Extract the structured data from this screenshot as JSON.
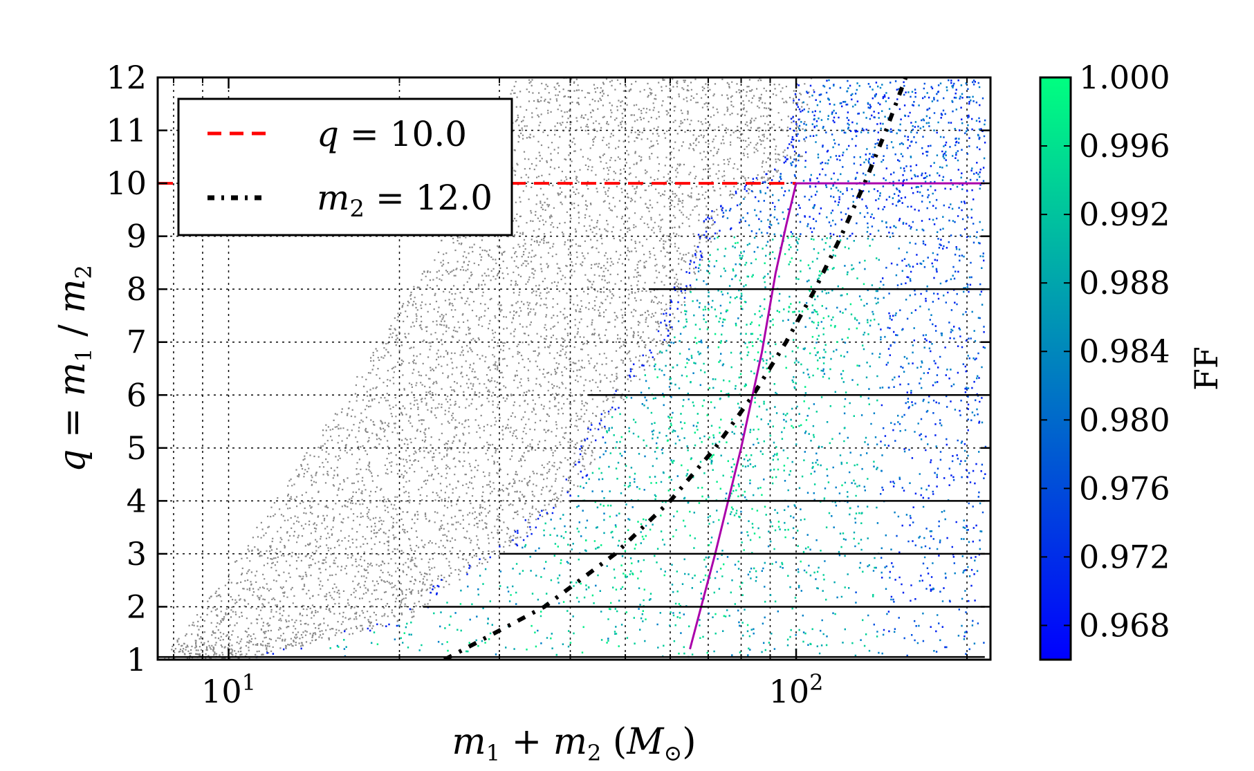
{
  "chart_data": {
    "type": "scatter",
    "xscale": "log",
    "xlim": [
      7.5,
      220
    ],
    "ylim": [
      1,
      12
    ],
    "grid": true,
    "xlabel": "m1 + m2 (M⊙)",
    "ylabel": "q = m1 / m2",
    "x_ticks_major": [
      {
        "value": 10,
        "label": "10^1"
      },
      {
        "value": 100,
        "label": "10^2"
      }
    ],
    "x_ticks_minor": [
      8,
      9,
      20,
      30,
      40,
      50,
      60,
      70,
      80,
      90,
      200
    ],
    "y_ticks": [
      1,
      2,
      3,
      4,
      5,
      6,
      7,
      8,
      9,
      10,
      11,
      12
    ],
    "colorbar": {
      "label": "FF",
      "min": 0.966,
      "max": 1.0,
      "ticks": [
        "1.000",
        "0.996",
        "0.992",
        "0.988",
        "0.984",
        "0.980",
        "0.976",
        "0.972",
        "0.968"
      ],
      "colors": [
        "#0000ff",
        "#00ff80"
      ]
    },
    "legend": {
      "placement": "top-left",
      "entries": [
        {
          "label": "q = 10.0",
          "style": "dashed",
          "color": "#ff0000"
        },
        {
          "label": "m2 = 12.0",
          "style": "dash-dot",
          "color": "#000000"
        }
      ]
    },
    "series": [
      {
        "name": "q = 10.0",
        "kind": "line",
        "color": "#ff0000",
        "x": [
          7.5,
          100
        ],
        "y": [
          10,
          10
        ]
      },
      {
        "name": "m2 = 12.0",
        "kind": "line",
        "color": "#000000",
        "x": [
          24,
          36,
          48,
          60,
          72,
          84,
          96,
          108,
          120,
          132,
          144,
          156
        ],
        "y": [
          1,
          2,
          3,
          4,
          5,
          6,
          7,
          8,
          9,
          10,
          11,
          12
        ]
      },
      {
        "kind": "line",
        "color": "#aa00aa",
        "x": [
          65,
          72,
          80,
          87,
          92,
          96,
          100,
          215
        ],
        "y": [
          1.2,
          3,
          5,
          6.8,
          8.3,
          9.2,
          10,
          10
        ]
      },
      {
        "kind": "hlines",
        "color": "#000000",
        "segments": [
          {
            "y": 8,
            "x": [
              55,
              215
            ]
          },
          {
            "y": 6,
            "x": [
              43,
              215
            ]
          },
          {
            "y": 4,
            "x": [
              40,
              215
            ]
          },
          {
            "y": 3,
            "x": [
              30,
              215
            ]
          },
          {
            "y": 2,
            "x": [
              22,
              215
            ]
          },
          {
            "y": 1.05,
            "x": [
              7.5,
              215
            ]
          }
        ]
      },
      {
        "kind": "scatter-region",
        "color": "#555555",
        "description_boundary_x_at_y": [
          [
            1,
            7.6
          ],
          [
            2,
            9
          ],
          [
            4,
            12
          ],
          [
            6,
            16
          ],
          [
            8,
            21
          ],
          [
            10,
            27
          ],
          [
            12,
            32
          ]
        ]
      },
      {
        "kind": "scatter-region",
        "colormap": "FF",
        "boundary_x_at_y": [
          [
            1,
            10
          ],
          [
            1.8,
            20
          ],
          [
            2.3,
            22
          ],
          [
            3.2,
            30
          ],
          [
            4.5,
            40
          ],
          [
            5.5,
            43
          ],
          [
            7,
            55
          ],
          [
            9.5,
            70
          ],
          [
            10.5,
            95
          ],
          [
            12,
            100
          ]
        ]
      }
    ]
  }
}
